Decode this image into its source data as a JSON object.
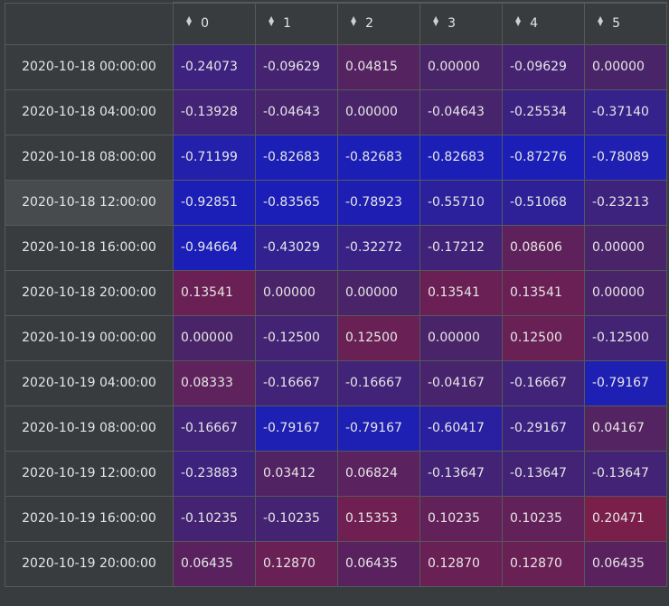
{
  "columns": [
    "0",
    "1",
    "2",
    "3",
    "4",
    "5"
  ],
  "rows": [
    {
      "label": "2020-10-18 00:00:00",
      "values": [
        "-0.24073",
        "-0.09629",
        "0.04815",
        "0.00000",
        "-0.09629",
        "0.00000"
      ]
    },
    {
      "label": "2020-10-18 04:00:00",
      "values": [
        "-0.13928",
        "-0.04643",
        "0.00000",
        "-0.04643",
        "-0.25534",
        "-0.37140"
      ]
    },
    {
      "label": "2020-10-18 08:00:00",
      "values": [
        "-0.71199",
        "-0.82683",
        "-0.82683",
        "-0.82683",
        "-0.87276",
        "-0.78089"
      ]
    },
    {
      "label": "2020-10-18 12:00:00",
      "values": [
        "-0.92851",
        "-0.83565",
        "-0.78923",
        "-0.55710",
        "-0.51068",
        "-0.23213"
      ]
    },
    {
      "label": "2020-10-18 16:00:00",
      "values": [
        "-0.94664",
        "-0.43029",
        "-0.32272",
        "-0.17212",
        "0.08606",
        "0.00000"
      ]
    },
    {
      "label": "2020-10-18 20:00:00",
      "values": [
        "0.13541",
        "0.00000",
        "0.00000",
        "0.13541",
        "0.13541",
        "0.00000"
      ]
    },
    {
      "label": "2020-10-19 00:00:00",
      "values": [
        "0.00000",
        "-0.12500",
        "0.12500",
        "0.00000",
        "0.12500",
        "-0.12500"
      ]
    },
    {
      "label": "2020-10-19 04:00:00",
      "values": [
        "0.08333",
        "-0.16667",
        "-0.16667",
        "-0.04167",
        "-0.16667",
        "-0.79167"
      ]
    },
    {
      "label": "2020-10-19 08:00:00",
      "values": [
        "-0.16667",
        "-0.79167",
        "-0.79167",
        "-0.60417",
        "-0.29167",
        "0.04167"
      ]
    },
    {
      "label": "2020-10-19 12:00:00",
      "values": [
        "-0.23883",
        "0.03412",
        "0.06824",
        "-0.13647",
        "-0.13647",
        "-0.13647"
      ]
    },
    {
      "label": "2020-10-19 16:00:00",
      "values": [
        "-0.10235",
        "-0.10235",
        "0.15353",
        "0.10235",
        "0.10235",
        "0.20471"
      ]
    },
    {
      "label": "2020-10-19 20:00:00",
      "values": [
        "0.06435",
        "0.12870",
        "0.06435",
        "0.12870",
        "0.12870",
        "0.06435"
      ]
    }
  ],
  "highlighted_row": 3,
  "colors": {
    "negative": "#1b1fb8",
    "neutral": "#4a2468",
    "positive": "#7a1e4a",
    "background": "#383c3e",
    "gridline": "#55595b"
  },
  "icons": {
    "sort": "sort-updown-icon"
  }
}
